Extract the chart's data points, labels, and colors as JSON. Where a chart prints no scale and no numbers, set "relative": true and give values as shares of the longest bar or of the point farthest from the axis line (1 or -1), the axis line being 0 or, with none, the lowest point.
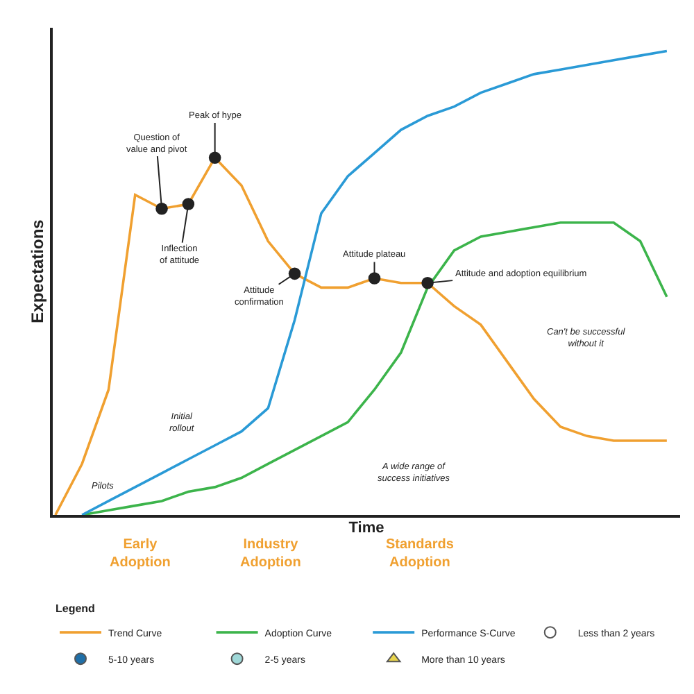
{
  "chart_data": {
    "type": "line",
    "relative": true,
    "xlabel": "Time",
    "ylabel": "Expectations",
    "legend_title": "Legend",
    "legend": "bottom",
    "categories": [
      null,
      null,
      null,
      null,
      null,
      null,
      null,
      null,
      null,
      null,
      null,
      null,
      null,
      null,
      null,
      null,
      null,
      null,
      null,
      null,
      null,
      null,
      null,
      null
    ],
    "series": [
      {
        "name": "Trend Curve",
        "color": "#f0a030",
        "values": [
          0,
          0.11,
          0.27,
          0.69,
          0.66,
          0.67,
          0.77,
          0.71,
          0.59,
          0.52,
          0.49,
          0.49,
          0.51,
          0.5,
          0.5,
          0.45,
          0.41,
          0.33,
          0.25,
          0.19,
          0.17,
          0.16,
          0.16,
          0.16
        ]
      },
      {
        "name": "Adoption Curve",
        "color": "#3cb44b",
        "values": [
          null,
          0,
          0.01,
          0.02,
          0.03,
          0.05,
          0.06,
          0.08,
          0.11,
          0.14,
          0.17,
          0.2,
          0.27,
          0.35,
          0.49,
          0.57,
          0.6,
          0.61,
          0.62,
          0.63,
          0.63,
          0.63,
          0.59,
          0.47
        ]
      },
      {
        "name": "Performance S-Curve",
        "color": "#2a9ad6",
        "values": [
          null,
          0,
          0.03,
          0.06,
          0.09,
          0.12,
          0.15,
          0.18,
          0.23,
          0.42,
          0.65,
          0.73,
          0.78,
          0.83,
          0.86,
          0.88,
          0.91,
          0.93,
          0.95,
          0.96,
          0.97,
          0.98,
          0.99,
          1
        ]
      },
      {
        "name": "Less than 2 years",
        "marker": "circle",
        "color": "#ffffff",
        "values": [
          null,
          null,
          null,
          null,
          null,
          null,
          null,
          null,
          null,
          null,
          null,
          null,
          null,
          null,
          null,
          null,
          null,
          null,
          null,
          null,
          null,
          null,
          null,
          null
        ]
      },
      {
        "name": "5-10 years",
        "marker": "circle",
        "color": "#1f6fa8",
        "values": [
          null,
          null,
          null,
          null,
          null,
          null,
          null,
          null,
          null,
          null,
          null,
          null,
          null,
          null,
          null,
          null,
          null,
          null,
          null,
          null,
          null,
          null,
          null,
          null
        ]
      },
      {
        "name": "2-5 years",
        "marker": "circle",
        "color": "#9fd8d8",
        "values": [
          null,
          null,
          null,
          null,
          null,
          null,
          null,
          null,
          null,
          null,
          null,
          null,
          null,
          null,
          null,
          null,
          null,
          null,
          null,
          null,
          null,
          null,
          null,
          null
        ]
      },
      {
        "name": "More than 10 years",
        "marker": "triangle",
        "color": "#e8d44d",
        "values": [
          null,
          null,
          null,
          null,
          null,
          null,
          null,
          null,
          null,
          null,
          null,
          null,
          null,
          null,
          null,
          null,
          null,
          null,
          null,
          null,
          null,
          null,
          null,
          null
        ]
      }
    ],
    "annotations": [
      "Question of\nvalue and pivot",
      "Inflection\nof attitude",
      "Peak of hype",
      "Attitude\nconfirmation",
      "Attitude plateau",
      "Attitude and adoption equilibrium",
      "Can't be successful\nwithout it",
      "A wide range of\nsuccess initiatives",
      "Pilots",
      "Initial\nrollout",
      "Early\nAdoption",
      "Industry\nAdoption",
      "Standards\nAdoption"
    ]
  }
}
